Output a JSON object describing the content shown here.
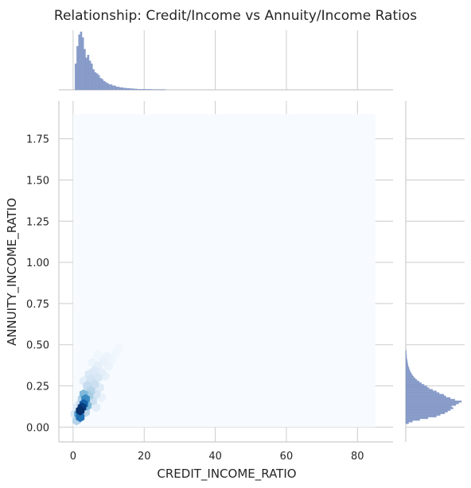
{
  "chart_data": {
    "type": "hexbin-joint",
    "title": "Relationship: Credit/Income vs Annuity/Income Ratios",
    "xlabel": "CREDIT_INCOME_RATIO",
    "ylabel": "ANNUITY_INCOME_RATIO",
    "xlim": [
      -4,
      90
    ],
    "ylim": [
      -0.09,
      1.98
    ],
    "xticks": [
      0,
      20,
      40,
      60,
      80
    ],
    "xtick_labels": [
      "0",
      "20",
      "40",
      "60",
      "80"
    ],
    "yticks": [
      0.0,
      0.25,
      0.5,
      0.75,
      1.0,
      1.25,
      1.5,
      1.75
    ],
    "ytick_labels": [
      "0.00",
      "0.25",
      "0.50",
      "0.75",
      "1.00",
      "1.25",
      "1.50",
      "1.75"
    ],
    "grid": true,
    "colormap": "Blues",
    "hex_region": {
      "x": [
        0,
        85
      ],
      "y": [
        0.0,
        1.9
      ]
    },
    "hexbins": [
      {
        "x": 2.0,
        "y": 0.1,
        "level": 1.0
      },
      {
        "x": 2.5,
        "y": 0.12,
        "level": 0.95
      },
      {
        "x": 3.0,
        "y": 0.14,
        "level": 0.8
      },
      {
        "x": 2.0,
        "y": 0.06,
        "level": 0.75
      },
      {
        "x": 3.5,
        "y": 0.17,
        "level": 0.65
      },
      {
        "x": 1.5,
        "y": 0.08,
        "level": 0.55
      },
      {
        "x": 4.0,
        "y": 0.13,
        "level": 0.45
      },
      {
        "x": 3.0,
        "y": 0.2,
        "level": 0.45
      },
      {
        "x": 4.5,
        "y": 0.19,
        "level": 0.35
      },
      {
        "x": 1.0,
        "y": 0.04,
        "level": 0.3
      },
      {
        "x": 5.0,
        "y": 0.22,
        "level": 0.3
      },
      {
        "x": 2.5,
        "y": 0.17,
        "level": 0.3
      },
      {
        "x": 3.5,
        "y": 0.09,
        "level": 0.28
      },
      {
        "x": 4.0,
        "y": 0.25,
        "level": 0.25
      },
      {
        "x": 5.5,
        "y": 0.16,
        "level": 0.22
      },
      {
        "x": 6.0,
        "y": 0.26,
        "level": 0.22
      },
      {
        "x": 2.0,
        "y": 0.14,
        "level": 0.2
      },
      {
        "x": 5.0,
        "y": 0.29,
        "level": 0.18
      },
      {
        "x": 6.5,
        "y": 0.2,
        "level": 0.17
      },
      {
        "x": 7.0,
        "y": 0.3,
        "level": 0.15
      },
      {
        "x": 4.5,
        "y": 0.32,
        "level": 0.14
      },
      {
        "x": 6.0,
        "y": 0.34,
        "level": 0.13
      },
      {
        "x": 7.5,
        "y": 0.24,
        "level": 0.12
      },
      {
        "x": 8.0,
        "y": 0.33,
        "level": 0.1
      },
      {
        "x": 3.0,
        "y": 0.28,
        "level": 0.1
      },
      {
        "x": 7.0,
        "y": 0.37,
        "level": 0.09
      },
      {
        "x": 9.0,
        "y": 0.31,
        "level": 0.08
      },
      {
        "x": 8.5,
        "y": 0.4,
        "level": 0.07
      },
      {
        "x": 10.0,
        "y": 0.37,
        "level": 0.06
      },
      {
        "x": 5.5,
        "y": 0.39,
        "level": 0.06
      },
      {
        "x": 9.5,
        "y": 0.43,
        "level": 0.05
      },
      {
        "x": 11.0,
        "y": 0.41,
        "level": 0.04
      },
      {
        "x": 12.0,
        "y": 0.45,
        "level": 0.035
      },
      {
        "x": 7.0,
        "y": 0.44,
        "level": 0.035
      },
      {
        "x": 13.0,
        "y": 0.48,
        "level": 0.03
      },
      {
        "x": 1.0,
        "y": 0.12,
        "level": 0.12
      },
      {
        "x": 0.5,
        "y": 0.08,
        "level": 0.15
      },
      {
        "x": 6.5,
        "y": 0.12,
        "level": 0.1
      },
      {
        "x": 8.0,
        "y": 0.18,
        "level": 0.07
      }
    ],
    "x_marginal": {
      "bins_x": [
        0.5,
        1,
        1.5,
        2,
        2.5,
        3,
        3.5,
        4,
        4.5,
        5,
        5.5,
        6,
        6.5,
        7,
        7.5,
        8,
        8.5,
        9,
        9.5,
        10,
        11,
        12,
        13,
        14,
        15,
        16,
        17,
        18,
        20,
        22,
        25
      ],
      "heights": [
        0.45,
        0.75,
        0.95,
        1.0,
        0.9,
        0.7,
        0.55,
        0.6,
        0.5,
        0.45,
        0.35,
        0.3,
        0.28,
        0.25,
        0.2,
        0.18,
        0.15,
        0.13,
        0.11,
        0.09,
        0.07,
        0.05,
        0.04,
        0.03,
        0.025,
        0.02,
        0.015,
        0.01,
        0.008,
        0.005,
        0.003
      ]
    },
    "y_marginal": {
      "bins_y": [
        0.02,
        0.03,
        0.04,
        0.05,
        0.06,
        0.07,
        0.08,
        0.09,
        0.1,
        0.11,
        0.12,
        0.13,
        0.14,
        0.15,
        0.16,
        0.17,
        0.18,
        0.19,
        0.2,
        0.21,
        0.22,
        0.23,
        0.24,
        0.25,
        0.26,
        0.27,
        0.28,
        0.29,
        0.3,
        0.31,
        0.32,
        0.33,
        0.34,
        0.35,
        0.36,
        0.37,
        0.38,
        0.39,
        0.4,
        0.41,
        0.42,
        0.44,
        0.46
      ],
      "heights": [
        0.05,
        0.12,
        0.25,
        0.4,
        0.55,
        0.62,
        0.7,
        0.75,
        0.8,
        0.85,
        0.82,
        0.9,
        0.95,
        1.0,
        0.88,
        0.8,
        0.72,
        0.68,
        0.6,
        0.55,
        0.48,
        0.42,
        0.38,
        0.33,
        0.28,
        0.24,
        0.2,
        0.17,
        0.14,
        0.12,
        0.1,
        0.085,
        0.07,
        0.06,
        0.05,
        0.04,
        0.035,
        0.03,
        0.025,
        0.02,
        0.015,
        0.01,
        0.006
      ]
    },
    "colors": {
      "marginal_fill": "#8da0cb",
      "marginal_edge": "#6f86bd",
      "grid": "#cccccc",
      "axis": "#cccccc",
      "hex_empty": "#f7fbff"
    }
  }
}
